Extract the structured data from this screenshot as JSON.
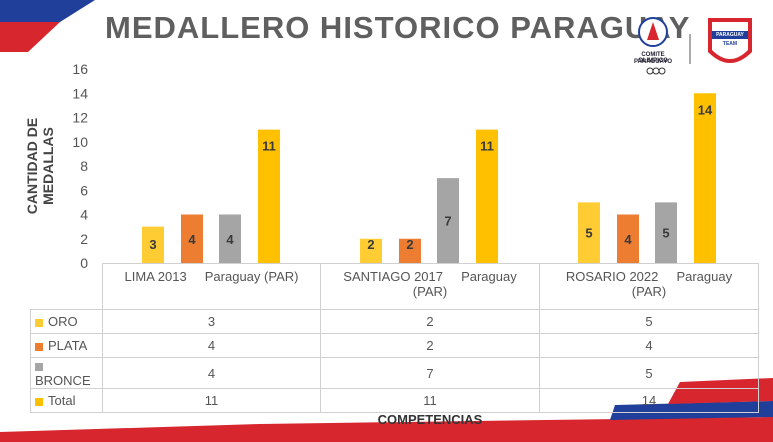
{
  "title": "MEDALLERO HISTORICO PARAGUAY",
  "logos": {
    "left_text_1": "COMITE OLIMPICO",
    "left_text_2": "PARAGUAYO",
    "right_text_1": "PARAGUAY",
    "right_text_2": "TEAM"
  },
  "colors": {
    "oro": "#ffcc33",
    "plata": "#ed7d31",
    "bronce": "#a5a5a5",
    "total": "#ffc000"
  },
  "chart_data": {
    "type": "bar",
    "categories": [
      "LIMA 2013    Paraguay (PAR)",
      "SANTIAGO 2017    Paraguay (PAR)",
      "ROSARIO 2022    Paraguay (PAR)"
    ],
    "category_lines": [
      [
        "LIMA 2013",
        "Paraguay (PAR)"
      ],
      [
        "SANTIAGO 2017",
        "Paraguay",
        "(PAR)"
      ],
      [
        "ROSARIO 2022",
        "Paraguay",
        "(PAR)"
      ]
    ],
    "series": [
      {
        "name": "ORO",
        "values": [
          3,
          2,
          5
        ]
      },
      {
        "name": "PLATA",
        "values": [
          4,
          2,
          4
        ]
      },
      {
        "name": "BRONCE",
        "values": [
          4,
          7,
          5
        ]
      },
      {
        "name": "Total",
        "values": [
          11,
          11,
          14
        ]
      }
    ],
    "xlabel": "COMPETENCIAS",
    "ylabel": "CANTIDAD DE MEDALLAS",
    "ylim": [
      0,
      16
    ],
    "yticks": [
      0,
      2,
      4,
      6,
      8,
      10,
      12,
      14,
      16
    ],
    "legend": "data table below chart"
  }
}
